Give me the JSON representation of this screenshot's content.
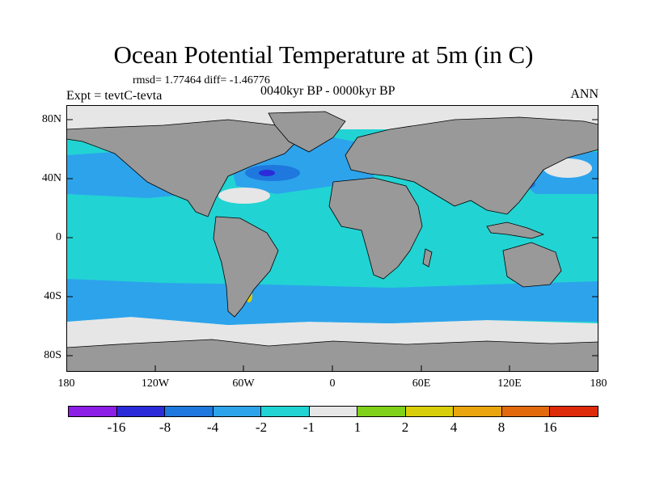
{
  "title": "Ocean Potential Temperature at 5m (in C)",
  "stats": "rmsd= 1.77464  diff= -1.46776",
  "experiment": "Expt = tevtC-tevta",
  "period": "0040kyr BP - 0000kyr BP",
  "season": "ANN",
  "y_axis_labels": [
    "80N",
    "40N",
    "0",
    "40S",
    "80S"
  ],
  "x_axis_labels": [
    "180",
    "120W",
    "60W",
    "0",
    "60E",
    "120E",
    "180"
  ],
  "colorbar": {
    "colors": [
      "#8c1ee6",
      "#2b2bd9",
      "#1f78dd",
      "#2da3ec",
      "#22d3d3",
      "#e6e6e6",
      "#7fd11a",
      "#d8cf0a",
      "#e8a50e",
      "#e26a0c",
      "#de2c0a"
    ],
    "labels": [
      "-16",
      "-8",
      "-4",
      "-2",
      "-1",
      "1",
      "2",
      "4",
      "8",
      "16"
    ]
  },
  "map_colors": {
    "land": "#999999",
    "ocean_base": "#22d3d3",
    "minus2": "#2da3ec",
    "minus4": "#1f78dd",
    "minus8": "#2b2bd9",
    "neutral": "#e6e6e6",
    "warm": "#d8cf0a"
  }
}
